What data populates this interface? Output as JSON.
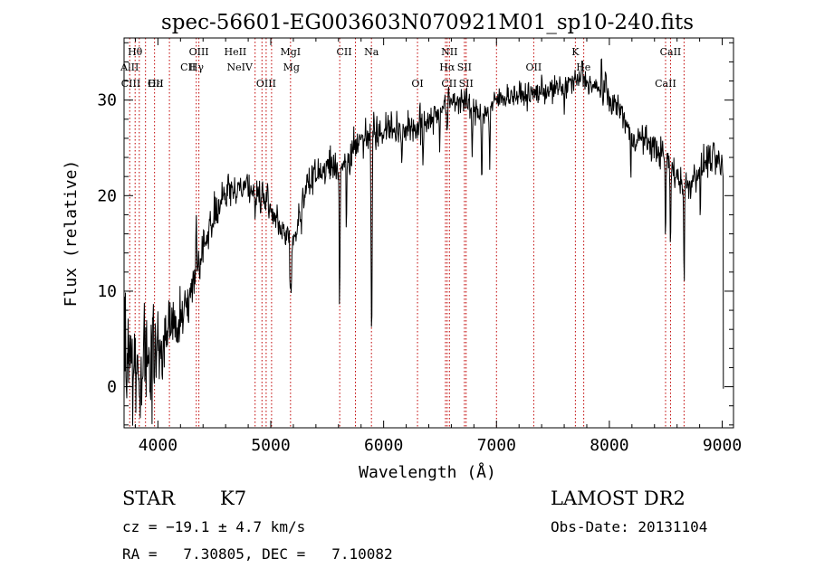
{
  "chart_data": {
    "type": "line",
    "title": "spec-56601-EG003603N070921M01_sp10-240.fits",
    "xlabel": "Wavelength (Å)",
    "ylabel": "Flux (relative)",
    "xlim": [
      3700,
      9100
    ],
    "ylim": [
      -4.3,
      36.5
    ],
    "xticks": [
      4000,
      5000,
      6000,
      7000,
      8000,
      9000
    ],
    "yticks": [
      0,
      10,
      20,
      30
    ],
    "xtick_labels": [
      "4000",
      "5000",
      "6000",
      "7000",
      "8000",
      "9000"
    ],
    "ytick_labels": [
      "0",
      "10",
      "20",
      "30"
    ],
    "grid": false,
    "series": [
      {
        "color": "#000000",
        "continuum": [
          [
            3700,
            3
          ],
          [
            3800,
            2
          ],
          [
            3900,
            1.5
          ],
          [
            4000,
            4
          ],
          [
            4100,
            6
          ],
          [
            4200,
            7
          ],
          [
            4300,
            10
          ],
          [
            4400,
            15
          ],
          [
            4500,
            18
          ],
          [
            4600,
            20
          ],
          [
            4700,
            21
          ],
          [
            4800,
            21
          ],
          [
            4900,
            20
          ],
          [
            5000,
            19
          ],
          [
            5100,
            16
          ],
          [
            5200,
            15
          ],
          [
            5300,
            21
          ],
          [
            5400,
            22
          ],
          [
            5500,
            23
          ],
          [
            5600,
            23
          ],
          [
            5700,
            24
          ],
          [
            5800,
            26
          ],
          [
            5900,
            27
          ],
          [
            6000,
            27
          ],
          [
            6100,
            27
          ],
          [
            6200,
            27
          ],
          [
            6300,
            27
          ],
          [
            6400,
            28
          ],
          [
            6500,
            29
          ],
          [
            6600,
            30
          ],
          [
            6700,
            30
          ],
          [
            6800,
            29
          ],
          [
            6900,
            28.5
          ],
          [
            7000,
            30
          ],
          [
            7100,
            30.5
          ],
          [
            7200,
            30.5
          ],
          [
            7300,
            30.5
          ],
          [
            7400,
            31
          ],
          [
            7500,
            31
          ],
          [
            7600,
            31.5
          ],
          [
            7700,
            32
          ],
          [
            7800,
            32
          ],
          [
            7900,
            31
          ],
          [
            8000,
            30
          ],
          [
            8100,
            29
          ],
          [
            8200,
            26
          ],
          [
            8300,
            26
          ],
          [
            8400,
            25
          ],
          [
            8500,
            24
          ],
          [
            8600,
            22
          ],
          [
            8700,
            21
          ],
          [
            8800,
            23
          ],
          [
            8900,
            24
          ],
          [
            9000,
            23
          ],
          [
            9010,
            22
          ]
        ],
        "noise_sigma": [
          [
            3700,
            4.5
          ],
          [
            4000,
            3
          ],
          [
            4300,
            1.6
          ],
          [
            5000,
            1.2
          ],
          [
            6000,
            1.4
          ],
          [
            7000,
            0.9
          ],
          [
            8000,
            1.0
          ],
          [
            9010,
            1.3
          ]
        ],
        "absorption_features": [
          [
            3934,
            4
          ],
          [
            3968,
            4
          ],
          [
            4227,
            3
          ],
          [
            4383,
            2
          ],
          [
            4861,
            3
          ],
          [
            5172,
            5
          ],
          [
            5183,
            5
          ],
          [
            5270,
            3
          ],
          [
            5610,
            15
          ],
          [
            5670,
            6
          ],
          [
            5890,
            14
          ],
          [
            5896,
            16
          ],
          [
            6162,
            4
          ],
          [
            6350,
            4
          ],
          [
            6495,
            3
          ],
          [
            6563,
            4
          ],
          [
            6785,
            6
          ],
          [
            6870,
            7
          ],
          [
            6940,
            6
          ],
          [
            7600,
            3
          ],
          [
            8190,
            4
          ],
          [
            8498,
            9
          ],
          [
            8542,
            9
          ],
          [
            8662,
            11
          ],
          [
            8806,
            6
          ]
        ],
        "emission_features": [
          [
            4340,
            6
          ],
          [
            7760,
            3
          ],
          [
            7930,
            4
          ],
          [
            7965,
            3
          ]
        ]
      }
    ],
    "line_markers": {
      "color": "#c00000",
      "rows": [
        [
          {
            "label": "Hθ",
            "x": 3798
          },
          {
            "label": "OIII",
            "x": 4363
          },
          {
            "label": "HeII",
            "x": 4686
          },
          {
            "label": "MgI",
            "x": 5175
          },
          {
            "label": "CII",
            "x": 5650
          },
          {
            "label": "Na",
            "x": 5892
          },
          {
            "label": "NII",
            "x": 6583
          },
          {
            "label": "K",
            "x": 7699
          },
          {
            "label": "CaII",
            "x": 8542
          }
        ],
        [
          {
            "label": "AlII",
            "x": 3750
          },
          {
            "label": "CII",
            "x": 4267
          },
          {
            "label": "Hγ",
            "x": 4341
          },
          {
            "label": "NeIV",
            "x": 4725
          },
          {
            "label": "Mg",
            "x": 5183
          },
          {
            "label": "Hα",
            "x": 6563
          },
          {
            "label": "SII",
            "x": 6716
          },
          {
            "label": "OII",
            "x": 7330
          },
          {
            "label": "He",
            "x": 7770
          }
        ],
        [
          {
            "label": "CIII",
            "x": 3760
          },
          {
            "label": "Hε",
            "x": 3970
          },
          {
            "label": "OII",
            "x": 3980
          },
          {
            "label": "OIII",
            "x": 4959
          },
          {
            "label": "OI",
            "x": 6300
          },
          {
            "label": "SII",
            "x": 6731
          },
          {
            "label": "CII",
            "x": 6580
          },
          {
            "label": "CaII",
            "x": 8498
          }
        ]
      ]
    },
    "line_marker_wavelengths": [
      3750,
      3798,
      3835,
      3890,
      3970,
      4102,
      4340,
      4363,
      4861,
      4922,
      4959,
      5007,
      5175,
      5611,
      5750,
      5892,
      6300,
      6548,
      6563,
      6583,
      6716,
      6731,
      7000,
      7330,
      7699,
      7773,
      8498,
      8542,
      8662
    ]
  },
  "annotations": {
    "object_class": "STAR",
    "subclass": "K7",
    "survey": "LAMOST DR2",
    "redshift": "cz = −19.1 ± 4.7 km/s",
    "obs_date": "Obs-Date: 20131104",
    "coords": "RA =   7.30805, DEC =   7.10082"
  }
}
